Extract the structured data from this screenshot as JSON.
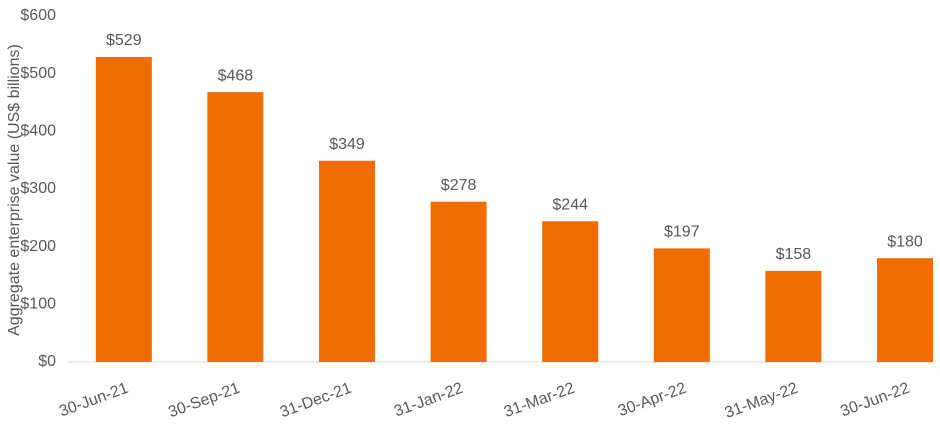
{
  "chart_data": {
    "type": "bar",
    "y_axis_label": "Aggregate enterprise value (US$ billions)",
    "categories": [
      "30-Jun-21",
      "30-Sep-21",
      "31-Dec-21",
      "31-Jan-22",
      "31-Mar-22",
      "30-Apr-22",
      "31-May-22",
      "30-Jun-22"
    ],
    "values": [
      529,
      468,
      349,
      278,
      244,
      197,
      158,
      180
    ],
    "value_labels": [
      "$529",
      "$468",
      "$349",
      "$278",
      "$244",
      "$197",
      "$158",
      "$180"
    ],
    "color": "#ee6c00",
    "ylim": [
      0,
      600
    ],
    "yticks": [
      {
        "value": 0,
        "label": "$0"
      },
      {
        "value": 100,
        "label": "$100"
      },
      {
        "value": 200,
        "label": "$200"
      },
      {
        "value": 300,
        "label": "$300"
      },
      {
        "value": 400,
        "label": "$400"
      },
      {
        "value": 500,
        "label": "$500"
      },
      {
        "value": 600,
        "label": "$600"
      }
    ],
    "grid": false
  }
}
